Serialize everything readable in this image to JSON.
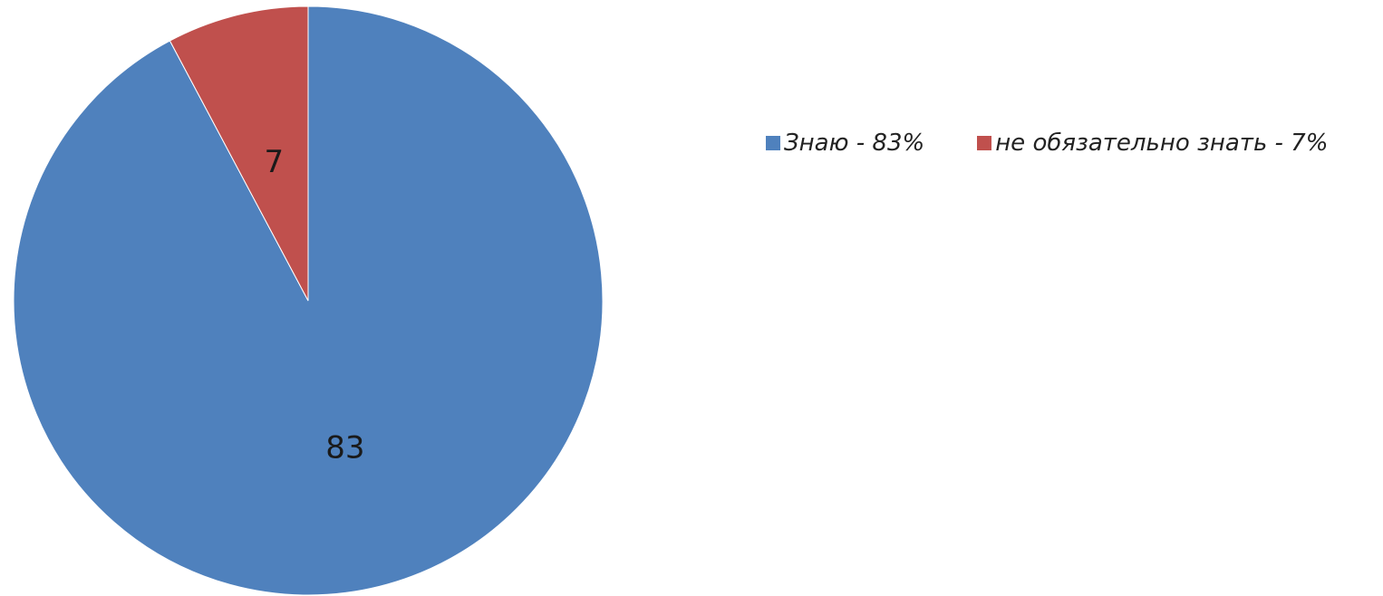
{
  "chart_data": {
    "type": "pie",
    "slices": [
      {
        "name": "Знаю - 83%",
        "value": 83,
        "label": "83",
        "color": "#4f81bd"
      },
      {
        "name": "не обязательно знать - 7%",
        "value": 7,
        "label": "7",
        "color": "#c0504d"
      }
    ],
    "legend_position": "right"
  }
}
